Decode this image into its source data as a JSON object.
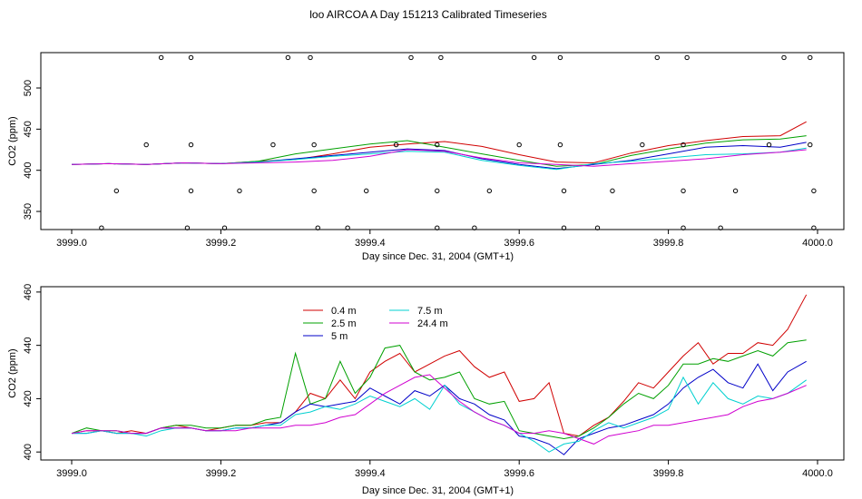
{
  "page_title": "loo AIRCOA A  Day 151213  Calibrated Timeseries",
  "colors": {
    "0.4 m": "#d00000",
    "2.5 m": "#00a000",
    "5 m": "#0000c8",
    "7.5 m": "#00d0d0",
    "24.4 m": "#d000d0"
  },
  "chart_data": [
    {
      "type": "line",
      "title": "",
      "xlabel": "Day since Dec. 31, 2004 (GMT+1)",
      "ylabel": "CO2 (ppm)",
      "xlim": [
        3999.0,
        4000.0
      ],
      "ylim": [
        328,
        543
      ],
      "x_ticks": [
        "3999.0",
        "3999.2",
        "3999.4",
        "3999.6",
        "3999.8",
        "4000.0"
      ],
      "y_ticks": [
        "350",
        "400",
        "450",
        "500"
      ],
      "series": [
        {
          "color": "#d00000",
          "x": [
            3999.0,
            3999.05,
            3999.1,
            3999.15,
            3999.2,
            3999.25,
            3999.3,
            3999.35,
            3999.4,
            3999.45,
            3999.5,
            3999.55,
            3999.6,
            3999.65,
            3999.7,
            3999.75,
            3999.8,
            3999.85,
            3999.9,
            3999.95,
            3999.985
          ],
          "y": [
            407,
            408,
            407,
            409,
            408,
            411,
            413,
            420,
            428,
            432,
            435,
            429,
            419,
            410,
            409,
            421,
            430,
            436,
            441,
            442,
            459
          ]
        },
        {
          "color": "#00a000",
          "x": [
            3999.0,
            3999.05,
            3999.1,
            3999.15,
            3999.2,
            3999.25,
            3999.3,
            3999.35,
            3999.4,
            3999.45,
            3999.5,
            3999.55,
            3999.6,
            3999.65,
            3999.7,
            3999.75,
            3999.8,
            3999.85,
            3999.9,
            3999.95,
            3999.985
          ],
          "y": [
            407,
            408,
            407,
            409,
            408,
            411,
            420,
            426,
            432,
            436,
            428,
            420,
            412,
            405,
            407,
            418,
            426,
            433,
            437,
            438,
            442
          ]
        },
        {
          "color": "#0000c8",
          "x": [
            3999.0,
            3999.05,
            3999.1,
            3999.15,
            3999.2,
            3999.25,
            3999.3,
            3999.35,
            3999.4,
            3999.45,
            3999.5,
            3999.55,
            3999.6,
            3999.65,
            3999.7,
            3999.75,
            3999.8,
            3999.85,
            3999.9,
            3999.95,
            3999.985
          ],
          "y": [
            407,
            408,
            407,
            409,
            408,
            410,
            414,
            418,
            422,
            426,
            424,
            414,
            407,
            402,
            407,
            412,
            420,
            428,
            430,
            428,
            434
          ]
        },
        {
          "color": "#00d0d0",
          "x": [
            3999.0,
            3999.05,
            3999.1,
            3999.15,
            3999.2,
            3999.25,
            3999.3,
            3999.35,
            3999.4,
            3999.45,
            3999.5,
            3999.55,
            3999.6,
            3999.65,
            3999.7,
            3999.75,
            3999.8,
            3999.85,
            3999.9,
            3999.95,
            3999.985
          ],
          "y": [
            407,
            408,
            407,
            409,
            408,
            410,
            413,
            417,
            420,
            423,
            422,
            412,
            406,
            401,
            408,
            411,
            415,
            419,
            420,
            422,
            427
          ]
        },
        {
          "color": "#d000d0",
          "x": [
            3999.0,
            3999.05,
            3999.1,
            3999.15,
            3999.2,
            3999.25,
            3999.3,
            3999.35,
            3999.4,
            3999.45,
            3999.5,
            3999.55,
            3999.6,
            3999.65,
            3999.7,
            3999.75,
            3999.8,
            3999.85,
            3999.9,
            3999.95,
            3999.985
          ],
          "y": [
            407,
            408,
            407,
            409,
            408,
            409,
            410,
            412,
            417,
            425,
            423,
            415,
            409,
            407,
            405,
            408,
            411,
            414,
            419,
            422,
            425
          ]
        }
      ],
      "markers": [
        {
          "x": 3999.04,
          "y": 330
        },
        {
          "x": 3999.06,
          "y": 375
        },
        {
          "x": 3999.1,
          "y": 431
        },
        {
          "x": 3999.12,
          "y": 537
        },
        {
          "x": 3999.155,
          "y": 330
        },
        {
          "x": 3999.16,
          "y": 375
        },
        {
          "x": 3999.16,
          "y": 431
        },
        {
          "x": 3999.16,
          "y": 537
        },
        {
          "x": 3999.205,
          "y": 330
        },
        {
          "x": 3999.225,
          "y": 375
        },
        {
          "x": 3999.27,
          "y": 431
        },
        {
          "x": 3999.29,
          "y": 537
        },
        {
          "x": 3999.32,
          "y": 537
        },
        {
          "x": 3999.325,
          "y": 431
        },
        {
          "x": 3999.325,
          "y": 375
        },
        {
          "x": 3999.33,
          "y": 330
        },
        {
          "x": 3999.37,
          "y": 330
        },
        {
          "x": 3999.395,
          "y": 375
        },
        {
          "x": 3999.435,
          "y": 431
        },
        {
          "x": 3999.455,
          "y": 537
        },
        {
          "x": 3999.49,
          "y": 330
        },
        {
          "x": 3999.49,
          "y": 375
        },
        {
          "x": 3999.49,
          "y": 431
        },
        {
          "x": 3999.495,
          "y": 537
        },
        {
          "x": 3999.54,
          "y": 330
        },
        {
          "x": 3999.56,
          "y": 375
        },
        {
          "x": 3999.6,
          "y": 431
        },
        {
          "x": 3999.62,
          "y": 537
        },
        {
          "x": 3999.655,
          "y": 537
        },
        {
          "x": 3999.655,
          "y": 431
        },
        {
          "x": 3999.66,
          "y": 375
        },
        {
          "x": 3999.66,
          "y": 330
        },
        {
          "x": 3999.705,
          "y": 330
        },
        {
          "x": 3999.725,
          "y": 375
        },
        {
          "x": 3999.765,
          "y": 431
        },
        {
          "x": 3999.785,
          "y": 537
        },
        {
          "x": 3999.82,
          "y": 330
        },
        {
          "x": 3999.82,
          "y": 375
        },
        {
          "x": 3999.82,
          "y": 431
        },
        {
          "x": 3999.825,
          "y": 537
        },
        {
          "x": 3999.87,
          "y": 330
        },
        {
          "x": 3999.89,
          "y": 375
        },
        {
          "x": 3999.935,
          "y": 431
        },
        {
          "x": 3999.955,
          "y": 537
        },
        {
          "x": 3999.99,
          "y": 537
        },
        {
          "x": 3999.99,
          "y": 431
        },
        {
          "x": 3999.995,
          "y": 375
        },
        {
          "x": 3999.995,
          "y": 330
        }
      ]
    },
    {
      "type": "line",
      "title": "",
      "xlabel": "Day since Dec. 31, 2004 (GMT+1)",
      "ylabel": "CO2 (ppm)",
      "xlim": [
        3999.0,
        4000.0
      ],
      "ylim": [
        397,
        462
      ],
      "x_ticks": [
        "3999.0",
        "3999.2",
        "3999.4",
        "3999.6",
        "3999.8",
        "4000.0"
      ],
      "y_ticks": [
        "400",
        "420",
        "440",
        "460"
      ],
      "legend_position": "top-left",
      "series": [
        {
          "name": "0.4 m",
          "color": "#d00000",
          "x": [
            3999.0,
            3999.02,
            3999.04,
            3999.06,
            3999.08,
            3999.1,
            3999.12,
            3999.14,
            3999.16,
            3999.18,
            3999.2,
            3999.22,
            3999.24,
            3999.26,
            3999.28,
            3999.3,
            3999.32,
            3999.34,
            3999.36,
            3999.38,
            3999.4,
            3999.42,
            3999.44,
            3999.46,
            3999.48,
            3999.5,
            3999.52,
            3999.54,
            3999.56,
            3999.58,
            3999.6,
            3999.62,
            3999.64,
            3999.66,
            3999.68,
            3999.7,
            3999.72,
            3999.74,
            3999.76,
            3999.78,
            3999.8,
            3999.82,
            3999.84,
            3999.86,
            3999.88,
            3999.9,
            3999.92,
            3999.94,
            3999.96,
            3999.985
          ],
          "y": [
            407,
            408,
            408,
            407,
            408,
            407,
            409,
            410,
            409,
            408,
            409,
            410,
            410,
            411,
            411,
            415,
            422,
            420,
            427,
            420,
            430,
            434,
            437,
            430,
            433,
            436,
            438,
            432,
            428,
            430,
            419,
            420,
            426,
            407,
            406,
            410,
            413,
            419,
            426,
            424,
            430,
            436,
            441,
            433,
            437,
            437,
            441,
            440,
            446,
            459
          ]
        },
        {
          "name": "2.5 m",
          "color": "#00a000",
          "x": [
            3999.0,
            3999.02,
            3999.04,
            3999.06,
            3999.08,
            3999.1,
            3999.12,
            3999.14,
            3999.16,
            3999.18,
            3999.2,
            3999.22,
            3999.24,
            3999.26,
            3999.28,
            3999.3,
            3999.32,
            3999.34,
            3999.36,
            3999.38,
            3999.4,
            3999.42,
            3999.44,
            3999.46,
            3999.48,
            3999.5,
            3999.52,
            3999.54,
            3999.56,
            3999.58,
            3999.6,
            3999.62,
            3999.64,
            3999.66,
            3999.68,
            3999.7,
            3999.72,
            3999.74,
            3999.76,
            3999.78,
            3999.8,
            3999.82,
            3999.84,
            3999.86,
            3999.88,
            3999.9,
            3999.92,
            3999.94,
            3999.96,
            3999.985
          ],
          "y": [
            407,
            409,
            408,
            408,
            407,
            407,
            409,
            410,
            410,
            409,
            409,
            410,
            410,
            412,
            413,
            437,
            418,
            420,
            434,
            422,
            428,
            439,
            440,
            430,
            427,
            428,
            430,
            420,
            418,
            419,
            408,
            407,
            406,
            405,
            406,
            409,
            413,
            418,
            422,
            420,
            425,
            433,
            433,
            435,
            434,
            436,
            438,
            436,
            441,
            442
          ]
        },
        {
          "name": "5 m",
          "color": "#0000c8",
          "x": [
            3999.0,
            3999.02,
            3999.04,
            3999.06,
            3999.08,
            3999.1,
            3999.12,
            3999.14,
            3999.16,
            3999.18,
            3999.2,
            3999.22,
            3999.24,
            3999.26,
            3999.28,
            3999.3,
            3999.32,
            3999.34,
            3999.36,
            3999.38,
            3999.4,
            3999.42,
            3999.44,
            3999.46,
            3999.48,
            3999.5,
            3999.52,
            3999.54,
            3999.56,
            3999.58,
            3999.6,
            3999.62,
            3999.64,
            3999.66,
            3999.68,
            3999.7,
            3999.72,
            3999.74,
            3999.76,
            3999.78,
            3999.8,
            3999.82,
            3999.84,
            3999.86,
            3999.88,
            3999.9,
            3999.92,
            3999.94,
            3999.96,
            3999.985
          ],
          "y": [
            407,
            407,
            408,
            407,
            407,
            407,
            409,
            409,
            409,
            408,
            408,
            409,
            409,
            410,
            411,
            415,
            418,
            417,
            418,
            419,
            424,
            421,
            418,
            423,
            421,
            425,
            420,
            418,
            414,
            412,
            406,
            405,
            403,
            399,
            405,
            407,
            409,
            410,
            412,
            414,
            418,
            424,
            428,
            431,
            426,
            424,
            433,
            423,
            430,
            434
          ]
        },
        {
          "name": "7.5 m",
          "color": "#00d0d0",
          "x": [
            3999.0,
            3999.02,
            3999.04,
            3999.06,
            3999.08,
            3999.1,
            3999.12,
            3999.14,
            3999.16,
            3999.18,
            3999.2,
            3999.22,
            3999.24,
            3999.26,
            3999.28,
            3999.3,
            3999.32,
            3999.34,
            3999.36,
            3999.38,
            3999.4,
            3999.42,
            3999.44,
            3999.46,
            3999.48,
            3999.5,
            3999.52,
            3999.54,
            3999.56,
            3999.58,
            3999.6,
            3999.62,
            3999.64,
            3999.66,
            3999.68,
            3999.7,
            3999.72,
            3999.74,
            3999.76,
            3999.78,
            3999.8,
            3999.82,
            3999.84,
            3999.86,
            3999.88,
            3999.9,
            3999.92,
            3999.94,
            3999.96,
            3999.985
          ],
          "y": [
            407,
            407,
            408,
            407,
            407,
            406,
            408,
            409,
            409,
            408,
            408,
            409,
            409,
            410,
            410,
            414,
            415,
            417,
            416,
            418,
            421,
            419,
            417,
            420,
            416,
            425,
            418,
            415,
            412,
            410,
            407,
            404,
            400,
            403,
            404,
            408,
            411,
            409,
            411,
            413,
            416,
            428,
            418,
            426,
            420,
            418,
            421,
            420,
            422,
            427
          ]
        },
        {
          "name": "24.4 m",
          "color": "#d000d0",
          "x": [
            3999.0,
            3999.02,
            3999.04,
            3999.06,
            3999.08,
            3999.1,
            3999.12,
            3999.14,
            3999.16,
            3999.18,
            3999.2,
            3999.22,
            3999.24,
            3999.26,
            3999.28,
            3999.3,
            3999.32,
            3999.34,
            3999.36,
            3999.38,
            3999.4,
            3999.42,
            3999.44,
            3999.46,
            3999.48,
            3999.5,
            3999.52,
            3999.54,
            3999.56,
            3999.58,
            3999.6,
            3999.62,
            3999.64,
            3999.66,
            3999.68,
            3999.7,
            3999.72,
            3999.74,
            3999.76,
            3999.78,
            3999.8,
            3999.82,
            3999.84,
            3999.86,
            3999.88,
            3999.9,
            3999.92,
            3999.94,
            3999.96,
            3999.985
          ],
          "y": [
            407,
            408,
            408,
            408,
            407,
            407,
            409,
            409,
            409,
            408,
            408,
            408,
            409,
            409,
            409,
            410,
            410,
            411,
            413,
            414,
            418,
            422,
            425,
            428,
            429,
            424,
            419,
            415,
            412,
            410,
            407,
            407,
            408,
            407,
            405,
            403,
            406,
            407,
            408,
            410,
            410,
            411,
            412,
            413,
            414,
            417,
            419,
            420,
            422,
            425
          ]
        }
      ]
    }
  ]
}
